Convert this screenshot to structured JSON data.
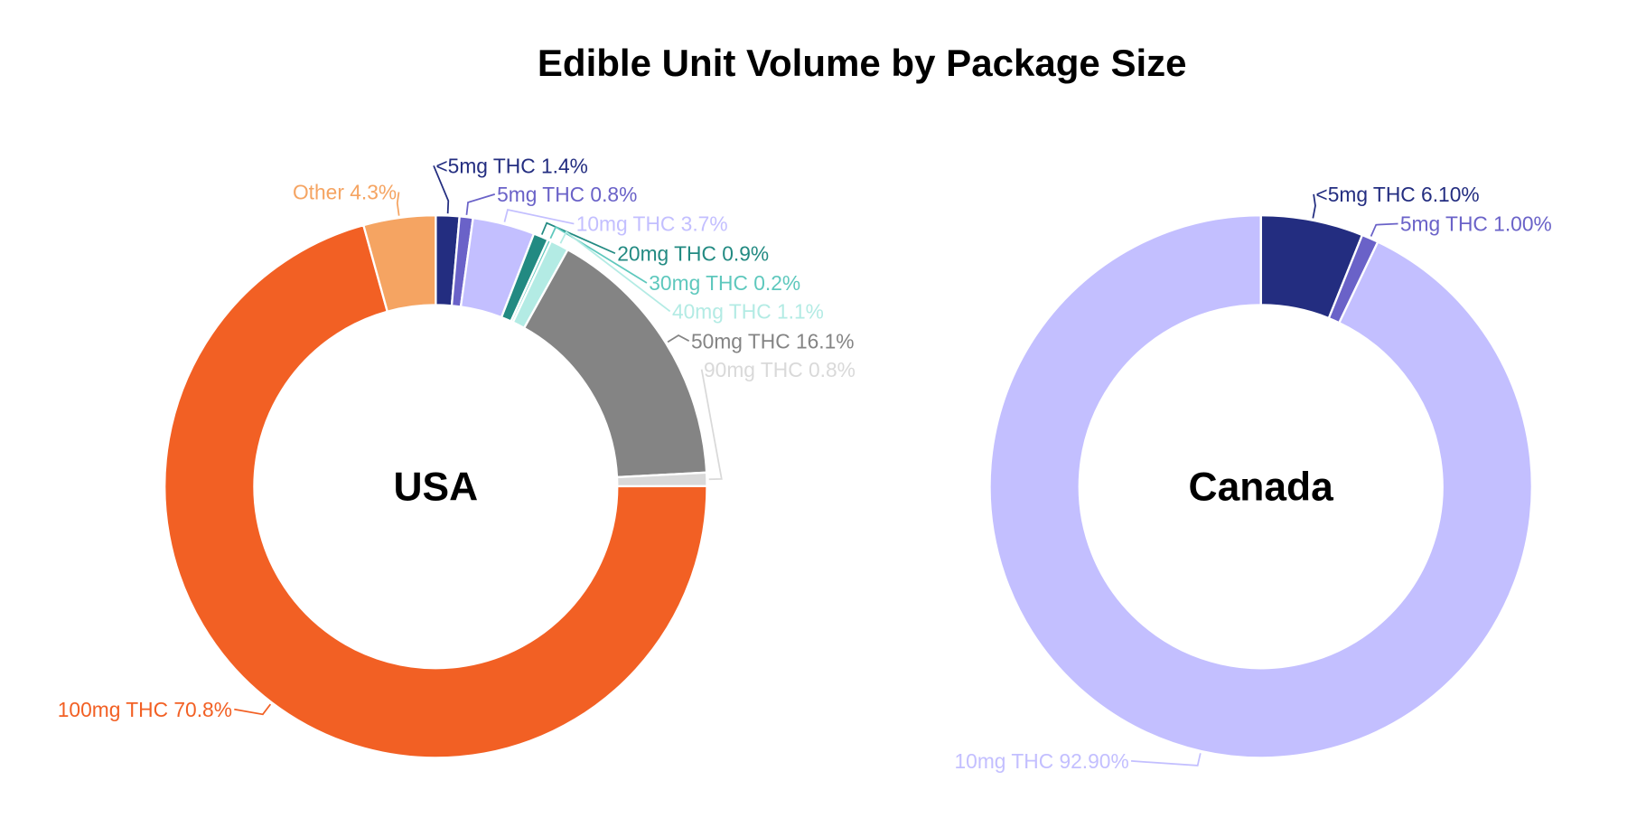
{
  "title": "Edible Unit Volume by Package Size",
  "chart_data": [
    {
      "type": "pie",
      "variant": "donut",
      "title": "USA",
      "categories": [
        "<5mg THC",
        "5mg THC",
        "10mg THC",
        "20mg THC",
        "30mg THC",
        "40mg THC",
        "50mg THC",
        "90mg THC",
        "100mg THC",
        "Other"
      ],
      "values": [
        1.4,
        0.8,
        3.7,
        0.9,
        0.2,
        1.1,
        16.1,
        0.8,
        70.8,
        4.3
      ],
      "labels": [
        "<5mg THC 1.4%",
        "5mg THC 0.8%",
        "10mg THC 3.7%",
        "20mg THC 0.9%",
        "30mg THC 0.2%",
        "40mg THC 1.1%",
        "50mg THC 16.1%",
        "90mg THC 0.8%",
        "100mg THC 70.8%",
        "Other 4.3%"
      ],
      "colors": [
        "#232d80",
        "#6a62c8",
        "#c3bfff",
        "#228a82",
        "#5ec8bd",
        "#b3ebe4",
        "#848484",
        "#d9d9d9",
        "#f26024",
        "#f5a462"
      ],
      "unit": "%"
    },
    {
      "type": "pie",
      "variant": "donut",
      "title": "Canada",
      "categories": [
        "<5mg THC",
        "5mg THC",
        "10mg THC"
      ],
      "values": [
        6.1,
        1.0,
        92.9
      ],
      "labels": [
        "<5mg THC 6.10%",
        "5mg THC 1.00%",
        "10mg THC 92.90%"
      ],
      "colors": [
        "#232d80",
        "#6a62c8",
        "#c3bfff"
      ],
      "unit": "%"
    }
  ]
}
